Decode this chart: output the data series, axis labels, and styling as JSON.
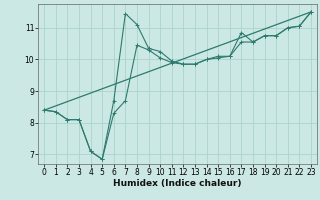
{
  "xlabel": "Humidex (Indice chaleur)",
  "background_color": "#cce8e4",
  "grid_color": "#aad4cc",
  "line_color": "#2d7a6e",
  "xlim": [
    -0.5,
    23.5
  ],
  "ylim": [
    6.7,
    11.75
  ],
  "xticks": [
    0,
    1,
    2,
    3,
    4,
    5,
    6,
    7,
    8,
    9,
    10,
    11,
    12,
    13,
    14,
    15,
    16,
    17,
    18,
    19,
    20,
    21,
    22,
    23
  ],
  "yticks": [
    7,
    8,
    9,
    10,
    11
  ],
  "series1_x": [
    0,
    1,
    2,
    3,
    4,
    5,
    6,
    7,
    8,
    9,
    10,
    11,
    12,
    13,
    14,
    15,
    16,
    17,
    18,
    19,
    20,
    21,
    22,
    23
  ],
  "series1_y": [
    8.4,
    8.35,
    8.1,
    8.1,
    7.1,
    6.85,
    8.7,
    11.45,
    11.1,
    10.35,
    10.25,
    9.95,
    9.85,
    9.85,
    10.0,
    10.1,
    10.1,
    10.85,
    10.55,
    10.75,
    10.75,
    11.0,
    11.05,
    11.5
  ],
  "series2_x": [
    0,
    1,
    2,
    3,
    4,
    5,
    6,
    7,
    8,
    9,
    10,
    11,
    12,
    13,
    14,
    15,
    16,
    17,
    18,
    19,
    20,
    21,
    22,
    23
  ],
  "series2_y": [
    8.4,
    8.35,
    8.1,
    8.1,
    7.1,
    6.85,
    8.3,
    8.7,
    10.45,
    10.3,
    10.05,
    9.9,
    9.85,
    9.85,
    10.0,
    10.05,
    10.1,
    10.55,
    10.55,
    10.75,
    10.75,
    11.0,
    11.05,
    11.5
  ],
  "series3_x": [
    0,
    23
  ],
  "series3_y": [
    8.4,
    11.5
  ]
}
